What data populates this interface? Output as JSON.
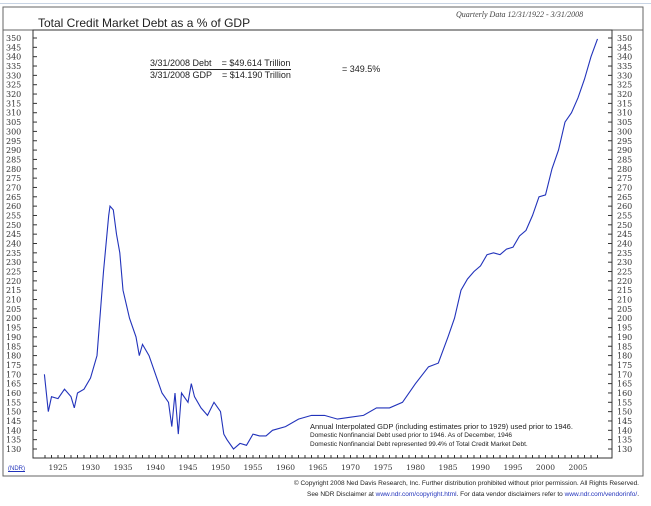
{
  "chart_data": {
    "type": "line",
    "title": "Total Credit Market Debt as a % of GDP",
    "subtitle": "Quarterly Data 12/31/1922 - 3/31/2008",
    "ylim": [
      130,
      350
    ],
    "yticks": [
      350,
      345,
      340,
      335,
      330,
      325,
      320,
      315,
      310,
      305,
      300,
      295,
      290,
      285,
      280,
      275,
      270,
      265,
      260,
      255,
      250,
      245,
      240,
      235,
      230,
      225,
      220,
      215,
      210,
      205,
      200,
      195,
      190,
      185,
      180,
      175,
      170,
      165,
      160,
      155,
      150,
      145,
      140,
      135,
      130
    ],
    "xlim": [
      1920,
      2010
    ],
    "xticks": [
      1925,
      1930,
      1935,
      1940,
      1945,
      1950,
      1955,
      1960,
      1965,
      1970,
      1975,
      1980,
      1985,
      1990,
      1995,
      2000,
      2005
    ],
    "grid": false,
    "color": "#2233bb",
    "series": [
      {
        "x": [
          1922.9,
          1923.5,
          1924,
          1925,
          1926,
          1927,
          1927.5,
          1928,
          1929,
          1930,
          1931,
          1932,
          1932.8,
          1933,
          1933.5,
          1934,
          1934.5,
          1935,
          1936,
          1937,
          1937.5,
          1938,
          1939,
          1940,
          1941,
          1942,
          1942.5,
          1943,
          1943.5,
          1944,
          1945,
          1945.5,
          1946,
          1947,
          1948,
          1949,
          1950,
          1950.5,
          1951,
          1952,
          1953,
          1954,
          1955,
          1956,
          1957,
          1958,
          1960,
          1962,
          1964,
          1966,
          1968,
          1970,
          1972,
          1974,
          1976,
          1978,
          1980,
          1982,
          1983.5,
          1985,
          1986,
          1987,
          1988,
          1989,
          1990,
          1991,
          1992,
          1993,
          1994,
          1995,
          1996,
          1997,
          1998,
          1999,
          2000,
          2001,
          2002,
          2003,
          2004,
          2005,
          2006,
          2007,
          2008
        ],
        "y": [
          170,
          150,
          158,
          157,
          162,
          158,
          152,
          160,
          162,
          168,
          180,
          225,
          255,
          260,
          258,
          245,
          235,
          215,
          200,
          190,
          180,
          186,
          180,
          170,
          160,
          155,
          142,
          160,
          138,
          160,
          155,
          165,
          158,
          152,
          148,
          155,
          150,
          138,
          135,
          130,
          133,
          132,
          138,
          137,
          137,
          140,
          142,
          146,
          148,
          148,
          146,
          147,
          148,
          152,
          152,
          155,
          165,
          174,
          176,
          190,
          200,
          215,
          221,
          225,
          228,
          234,
          235,
          234,
          237,
          238,
          244,
          247,
          255,
          265,
          266,
          280,
          290,
          305,
          310,
          318,
          328,
          340,
          349.5
        ]
      }
    ]
  },
  "formula": {
    "line1_label": "3/31/2008  Debt",
    "line1_value": "=  $49.614 Trillion",
    "line2_label": "3/31/2008  GDP",
    "line2_value": "=  $14.190 Trillion",
    "result": "=  349.5%"
  },
  "note": [
    "Annual Interpolated GDP (including estimates prior to 1929) used prior to 1946.",
    "Domestic Nonfinancial Debt used prior to 1946. As of December, 1946",
    "Domestic Nonfinancial Debt represented 99.4% of Total Credit Market Debt."
  ],
  "footer": {
    "logo": "(NDR)",
    "copyright": "© Copyright 2008 Ned Davis Research, Inc.  Further distribution prohibited without prior permission.  All Rights Reserved.",
    "disclaimer_pre": "See NDR Disclaimer at ",
    "link1": "www.ndr.com/copyright.html",
    "disclaimer_mid": ". For data vendor disclaimers refer to ",
    "link2": "www.ndr.com/vendorinfo/",
    "disclaimer_post": "."
  }
}
